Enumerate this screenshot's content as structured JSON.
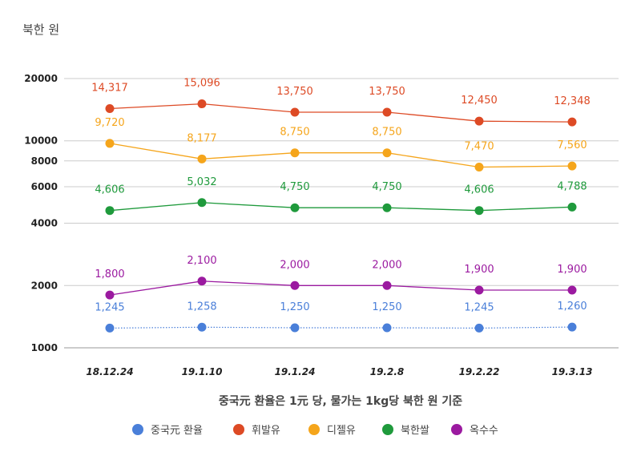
{
  "chart_data": {
    "type": "line",
    "title": "",
    "ylabel": "북한 원",
    "xlabel": "중국元 환율은 1元 당, 물가는 1kg당 북한 원 기준",
    "y_scale": "log",
    "ylim": [
      1000,
      25000
    ],
    "y_ticks": [
      1000,
      2000,
      4000,
      6000,
      8000,
      10000,
      20000
    ],
    "y_tick_labels": [
      "1000",
      "2000",
      "4000",
      "6000",
      "8000",
      "10000",
      "20000"
    ],
    "grid": true,
    "legend_position": "bottom",
    "categories": [
      "18.12.24",
      "19.1.10",
      "19.1.24",
      "19.2.8",
      "19.2.22",
      "19.3.13"
    ],
    "series": [
      {
        "name": "중국元 환율",
        "color": "#4a7fd9",
        "line_style": "dotted",
        "values": [
          1245,
          1258,
          1250,
          1250,
          1245,
          1260
        ],
        "labels": [
          "1,245",
          "1,258",
          "1,250",
          "1,250",
          "1,245",
          "1,260"
        ]
      },
      {
        "name": "휘발유",
        "color": "#dd4a25",
        "values": [
          14317,
          15096,
          13750,
          13750,
          12450,
          12348
        ],
        "labels": [
          "14,317",
          "15,096",
          "13,750",
          "13,750",
          "12,450",
          "12,348"
        ]
      },
      {
        "name": "디젤유",
        "color": "#f5a51b",
        "values": [
          9720,
          8177,
          8750,
          8750,
          7470,
          7560
        ],
        "labels": [
          "9,720",
          "8,177",
          "8,750",
          "8,750",
          "7,470",
          "7,560"
        ]
      },
      {
        "name": "북한쌀",
        "color": "#1f9a3c",
        "values": [
          4606,
          5032,
          4750,
          4750,
          4606,
          4788
        ],
        "labels": [
          "4,606",
          "5,032",
          "4,750",
          "4,750",
          "4,606",
          "4,788"
        ]
      },
      {
        "name": "옥수수",
        "color": "#9b1aa0",
        "values": [
          1800,
          2100,
          2000,
          2000,
          1900,
          1900
        ],
        "labels": [
          "1,800",
          "2,100",
          "2,000",
          "2,000",
          "1,900",
          "1,900"
        ]
      }
    ]
  }
}
